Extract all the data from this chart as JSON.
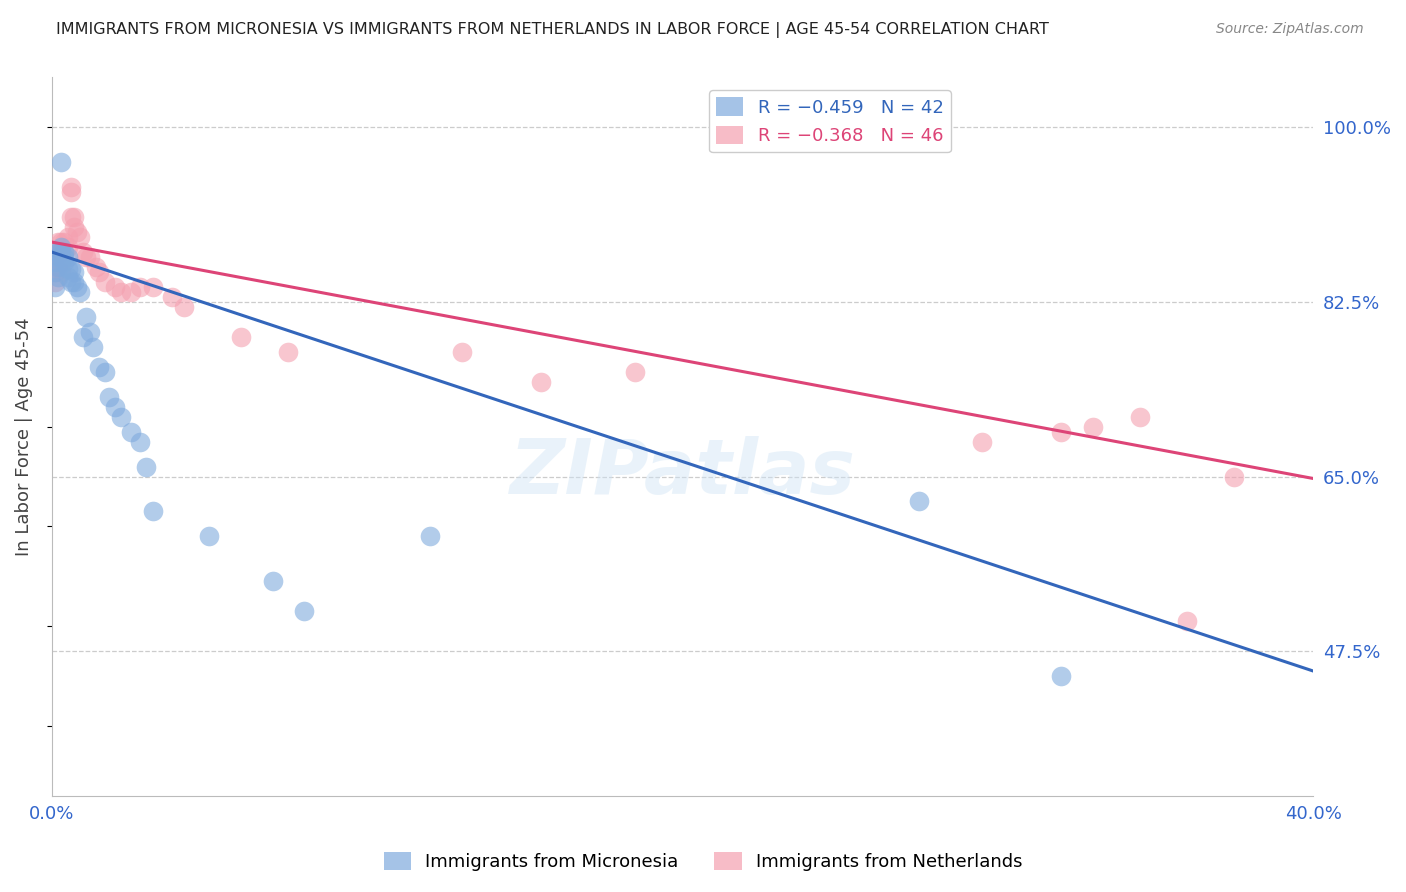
{
  "title": "IMMIGRANTS FROM MICRONESIA VS IMMIGRANTS FROM NETHERLANDS IN LABOR FORCE | AGE 45-54 CORRELATION CHART",
  "source": "Source: ZipAtlas.com",
  "ylabel": "In Labor Force | Age 45-54",
  "xlim": [
    0.0,
    0.4
  ],
  "ylim": [
    0.33,
    1.05
  ],
  "ytick_labels_right": [
    "100.0%",
    "82.5%",
    "65.0%",
    "47.5%"
  ],
  "ytick_values_right": [
    1.0,
    0.825,
    0.65,
    0.475
  ],
  "blue_color": "#7faadd",
  "pink_color": "#f4a0b0",
  "blue_line_color": "#3366bb",
  "pink_line_color": "#dd4477",
  "watermark_text": "ZIPatlas",
  "background_color": "#ffffff",
  "grid_color": "#cccccc",
  "mic_x": [
    0.001,
    0.001,
    0.001,
    0.002,
    0.002,
    0.002,
    0.002,
    0.003,
    0.003,
    0.003,
    0.003,
    0.004,
    0.004,
    0.004,
    0.005,
    0.005,
    0.005,
    0.006,
    0.006,
    0.007,
    0.007,
    0.008,
    0.009,
    0.01,
    0.011,
    0.012,
    0.013,
    0.015,
    0.017,
    0.018,
    0.02,
    0.022,
    0.025,
    0.028,
    0.03,
    0.032,
    0.05,
    0.07,
    0.08,
    0.12,
    0.275,
    0.32
  ],
  "mic_y": [
    0.865,
    0.855,
    0.84,
    0.875,
    0.87,
    0.86,
    0.85,
    0.965,
    0.88,
    0.875,
    0.87,
    0.875,
    0.87,
    0.865,
    0.87,
    0.858,
    0.85,
    0.858,
    0.845,
    0.855,
    0.845,
    0.84,
    0.835,
    0.79,
    0.81,
    0.795,
    0.78,
    0.76,
    0.755,
    0.73,
    0.72,
    0.71,
    0.695,
    0.685,
    0.66,
    0.615,
    0.59,
    0.545,
    0.515,
    0.59,
    0.625,
    0.45
  ],
  "neth_x": [
    0.001,
    0.001,
    0.001,
    0.001,
    0.002,
    0.002,
    0.002,
    0.003,
    0.003,
    0.003,
    0.003,
    0.004,
    0.004,
    0.005,
    0.005,
    0.006,
    0.006,
    0.006,
    0.007,
    0.007,
    0.008,
    0.009,
    0.01,
    0.011,
    0.012,
    0.014,
    0.015,
    0.017,
    0.02,
    0.022,
    0.025,
    0.028,
    0.032,
    0.038,
    0.042,
    0.06,
    0.075,
    0.13,
    0.155,
    0.185,
    0.295,
    0.32,
    0.33,
    0.345,
    0.36,
    0.375
  ],
  "neth_y": [
    0.87,
    0.86,
    0.855,
    0.845,
    0.885,
    0.875,
    0.86,
    0.885,
    0.875,
    0.865,
    0.855,
    0.885,
    0.875,
    0.89,
    0.88,
    0.94,
    0.935,
    0.91,
    0.91,
    0.9,
    0.895,
    0.89,
    0.875,
    0.87,
    0.87,
    0.86,
    0.855,
    0.845,
    0.84,
    0.835,
    0.835,
    0.84,
    0.84,
    0.83,
    0.82,
    0.79,
    0.775,
    0.775,
    0.745,
    0.755,
    0.685,
    0.695,
    0.7,
    0.71,
    0.505,
    0.65
  ],
  "blue_line_x0": 0.0,
  "blue_line_y0": 0.875,
  "blue_line_x1": 0.4,
  "blue_line_y1": 0.455,
  "pink_line_x0": 0.0,
  "pink_line_y0": 0.885,
  "pink_line_x1": 0.4,
  "pink_line_y1": 0.648
}
